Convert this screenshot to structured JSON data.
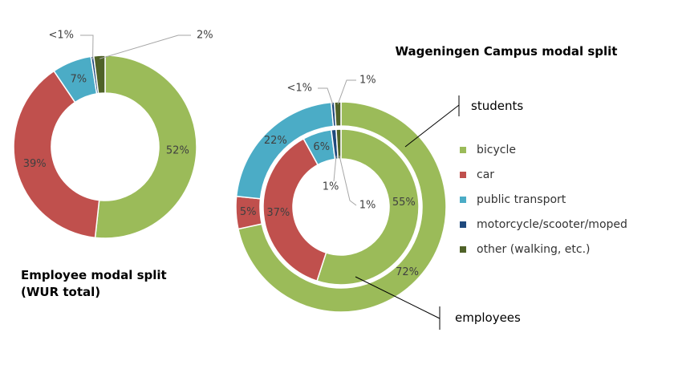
{
  "colors": {
    "bicycle": "#9bbb59",
    "car": "#c0504d",
    "public_transport": "#4bacc6",
    "motorcycle": "#1f497d",
    "other": "#4f6228",
    "leader": "#a6a6a6"
  },
  "legend": [
    {
      "label": "bicycle",
      "color_key": "bicycle"
    },
    {
      "label": "car",
      "color_key": "car"
    },
    {
      "label": "public transport",
      "color_key": "public_transport"
    },
    {
      "label": "motorcycle/scooter/moped",
      "color_key": "motorcycle"
    },
    {
      "label": "other (walking, etc.)",
      "color_key": "other"
    }
  ],
  "callouts": {
    "students": "students",
    "employees": "employees"
  },
  "chart_data": [
    {
      "type": "donut",
      "title": "Employee modal split (WUR total)",
      "title_lines": [
        "Employee modal split",
        "(WUR total)"
      ],
      "categories": [
        "bicycle",
        "car",
        "public transport",
        "motorcycle/scooter/moped",
        "other (walking, etc.)"
      ],
      "values": [
        52,
        39,
        7,
        0.5,
        2
      ],
      "labels": [
        "52%",
        "39%",
        "7%",
        "<1%",
        "2%"
      ]
    },
    {
      "type": "donut",
      "title": "Wageningen Campus modal split",
      "categories": [
        "bicycle",
        "car",
        "public transport",
        "motorcycle/scooter/moped",
        "other (walking, etc.)"
      ],
      "series": [
        {
          "name": "students",
          "values": [
            72,
            5,
            22,
            0.5,
            1
          ],
          "labels": [
            "72%",
            "5%",
            "22%",
            "<1%",
            "1%"
          ]
        },
        {
          "name": "employees",
          "values": [
            55,
            37,
            6,
            1,
            1
          ],
          "labels": [
            "55%",
            "37%",
            "6%",
            "1%",
            "1%"
          ]
        }
      ]
    }
  ]
}
